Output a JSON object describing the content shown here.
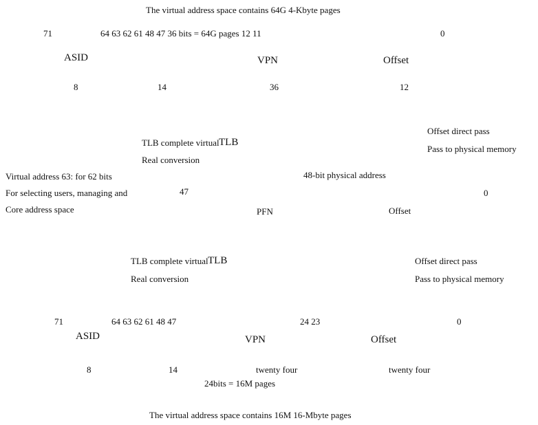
{
  "top": {
    "caption": "The virtual address space contains 64G 4-Kbyte pages",
    "bit_positions": {
      "b71": "71",
      "middle": "64 63 62 61 48 47 36 bits = 64G pages 12 11",
      "b0": "0"
    },
    "fields": {
      "asid": "ASID",
      "vpn": "VPN",
      "offset": "Offset"
    },
    "widths": {
      "asid": "8",
      "gap": "14",
      "vpn": "36",
      "offset": "12"
    },
    "tlb": {
      "line1": "TLB complete virtual",
      "overlay": "TLB",
      "line2": "Real conversion"
    },
    "offset_pass": {
      "line1": "Offset direct pass",
      "line2": "Pass to physical memory"
    }
  },
  "middle": {
    "note": {
      "line1": "Virtual address 63: for 62 bits",
      "line2": "For selecting users, managing and",
      "line3": "Core address space"
    },
    "phys_label": "48-bit physical address",
    "b47": "47",
    "b0": "0",
    "fields": {
      "pfn": "PFN",
      "offset": "Offset"
    }
  },
  "bottom": {
    "tlb": {
      "line1": "TLB complete virtual",
      "overlay": "TLB",
      "line2": "Real conversion"
    },
    "offset_pass": {
      "line1": "Offset direct pass",
      "line2": "Pass to physical memory"
    },
    "bit_positions": {
      "b71": "71",
      "middle": "64 63 62 61 48 47",
      "b24_23": "24 23",
      "b0": "0"
    },
    "fields": {
      "asid": "ASID",
      "vpn": "VPN",
      "offset": "Offset"
    },
    "widths": {
      "asid": "8",
      "gap": "14",
      "vpn": "twenty four",
      "offset": "twenty four"
    },
    "pages_note": "24bits = 16M pages",
    "caption": "The virtual address space contains 16M 16-Mbyte pages"
  }
}
